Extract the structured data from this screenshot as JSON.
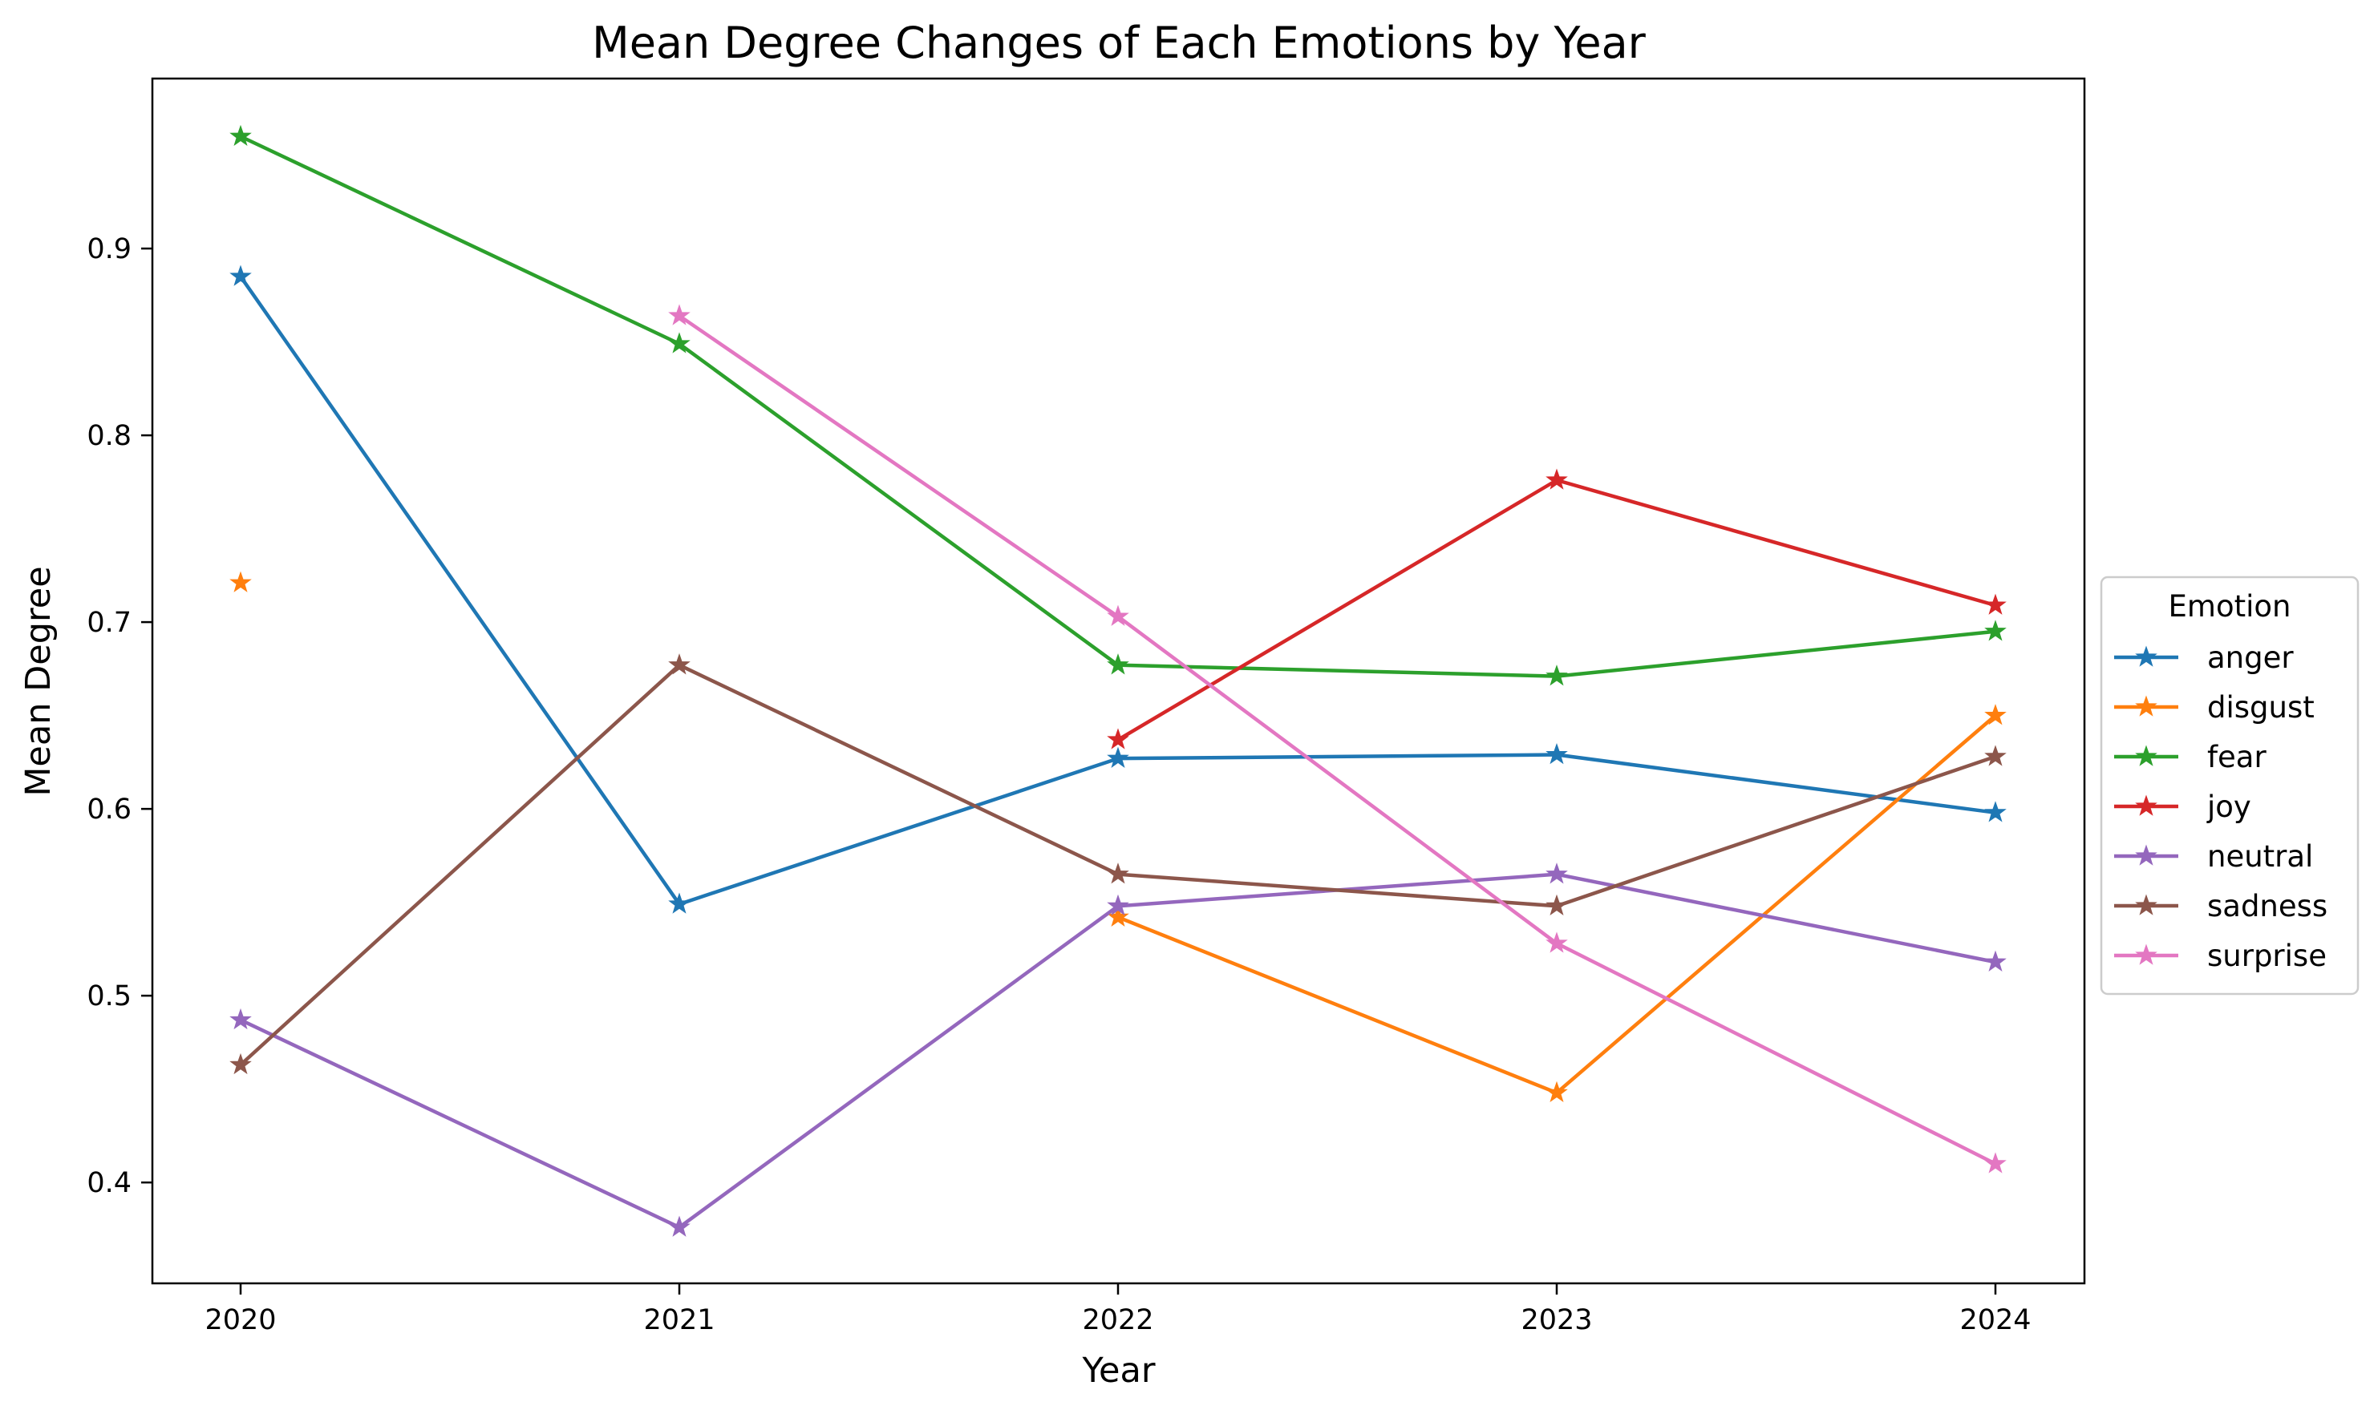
{
  "chart_data": {
    "type": "line",
    "title": "Mean Degree Changes of Each Emotions by Year",
    "xlabel": "Year",
    "ylabel": "Mean Degree",
    "x": [
      2020,
      2021,
      2022,
      2023,
      2024
    ],
    "x_ticks": [
      "2020",
      "2021",
      "2022",
      "2023",
      "2024"
    ],
    "ylim": [
      0.346,
      0.991
    ],
    "y_ticks": [
      0.4,
      0.5,
      0.6,
      0.7,
      0.8,
      0.9
    ],
    "y_tick_labels": [
      "0.4",
      "0.5",
      "0.6",
      "0.7",
      "0.8",
      "0.9"
    ],
    "grid": false,
    "marker": "star",
    "legend": {
      "title": "Emotion",
      "placement": "center-right-outside"
    },
    "series": [
      {
        "name": "anger",
        "color": "#1f77b4",
        "values": [
          0.885,
          0.549,
          0.627,
          0.629,
          0.598
        ]
      },
      {
        "name": "disgust",
        "color": "#ff7f0e",
        "values": [
          0.721,
          null,
          0.542,
          0.448,
          0.65
        ]
      },
      {
        "name": "fear",
        "color": "#2ca02c",
        "values": [
          0.96,
          0.849,
          0.677,
          0.671,
          0.695
        ]
      },
      {
        "name": "joy",
        "color": "#d62728",
        "values": [
          null,
          null,
          0.637,
          0.776,
          0.709
        ]
      },
      {
        "name": "neutral",
        "color": "#9467bd",
        "values": [
          0.487,
          0.376,
          0.548,
          0.565,
          0.518
        ]
      },
      {
        "name": "sadness",
        "color": "#8c564b",
        "values": [
          0.463,
          0.677,
          0.565,
          0.548,
          0.628
        ]
      },
      {
        "name": "surprise",
        "color": "#e377c2",
        "values": [
          null,
          0.864,
          0.703,
          0.528,
          0.41
        ]
      }
    ]
  }
}
